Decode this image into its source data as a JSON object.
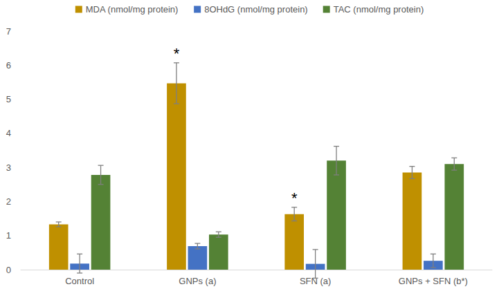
{
  "chart_data": {
    "type": "bar",
    "categories": [
      "Control",
      "GNPs (a)",
      "SFN (a)",
      "GNPs + SFN (b*)"
    ],
    "series": [
      {
        "name": "MDA (nmol/mg protein)",
        "color": "#bf9000",
        "values": [
          1.33,
          5.47,
          1.63,
          2.85
        ],
        "errors": [
          0.07,
          0.6,
          0.2,
          0.18
        ]
      },
      {
        "name": "8OHdG (nmol/mg protein)",
        "color": "#4472c4",
        "values": [
          0.18,
          0.69,
          0.17,
          0.26
        ],
        "errors": [
          0.28,
          0.08,
          0.42,
          0.2
        ]
      },
      {
        "name": "TAC (nmol/mg protein)",
        "color": "#548235",
        "values": [
          2.78,
          1.03,
          3.2,
          3.1
        ],
        "errors": [
          0.28,
          0.08,
          0.42,
          0.18
        ]
      }
    ],
    "annotations": [
      {
        "text": "*",
        "category": "GNPs (a)",
        "series": "MDA (nmol/mg protein)"
      },
      {
        "text": "*",
        "category": "SFN (a)",
        "series": "MDA (nmol/mg protein)"
      }
    ],
    "ylim": [
      0,
      7
    ],
    "yticks": [
      0,
      1,
      2,
      3,
      4,
      5,
      6,
      7
    ],
    "grid": false,
    "legend": "top"
  }
}
